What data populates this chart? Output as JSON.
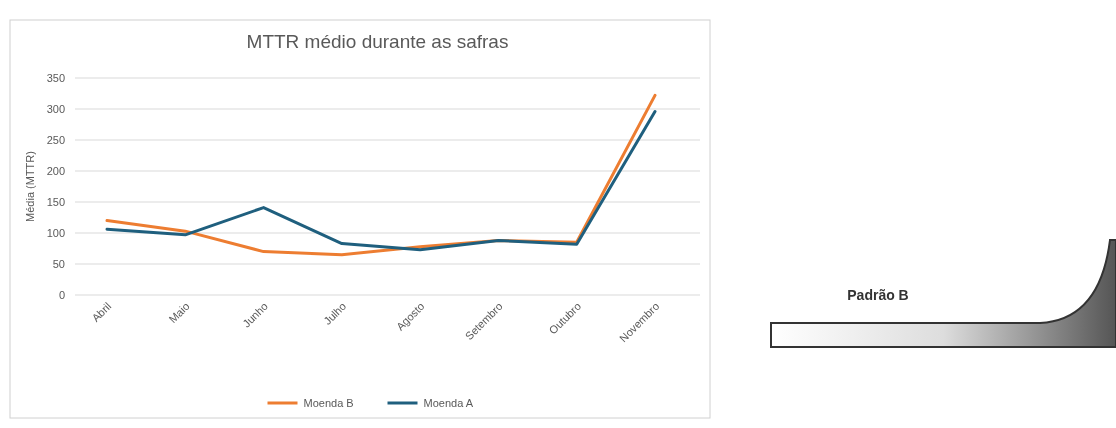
{
  "chart_data": {
    "type": "line",
    "title": "MTTR médio durante as safras",
    "ylabel": "Média (MTTR)",
    "categories": [
      "Abril",
      "Maio",
      "Junho",
      "Julho",
      "Agosto",
      "Setembro",
      "Outubro",
      "Novembro"
    ],
    "series": [
      {
        "name": "Moenda B",
        "color": "#ed7d31",
        "values": [
          120,
          103,
          70,
          65,
          78,
          88,
          85,
          322
        ]
      },
      {
        "name": "Moenda A",
        "color": "#1f5f7e",
        "values": [
          106,
          97,
          141,
          83,
          73,
          88,
          82,
          296
        ]
      }
    ],
    "ylim": [
      0,
      350
    ],
    "yticks": [
      0,
      50,
      100,
      150,
      200,
      250,
      300,
      350
    ],
    "grid": "y",
    "legend": "bottom",
    "marker": "none",
    "annotations": [
      "Padrão B"
    ]
  }
}
